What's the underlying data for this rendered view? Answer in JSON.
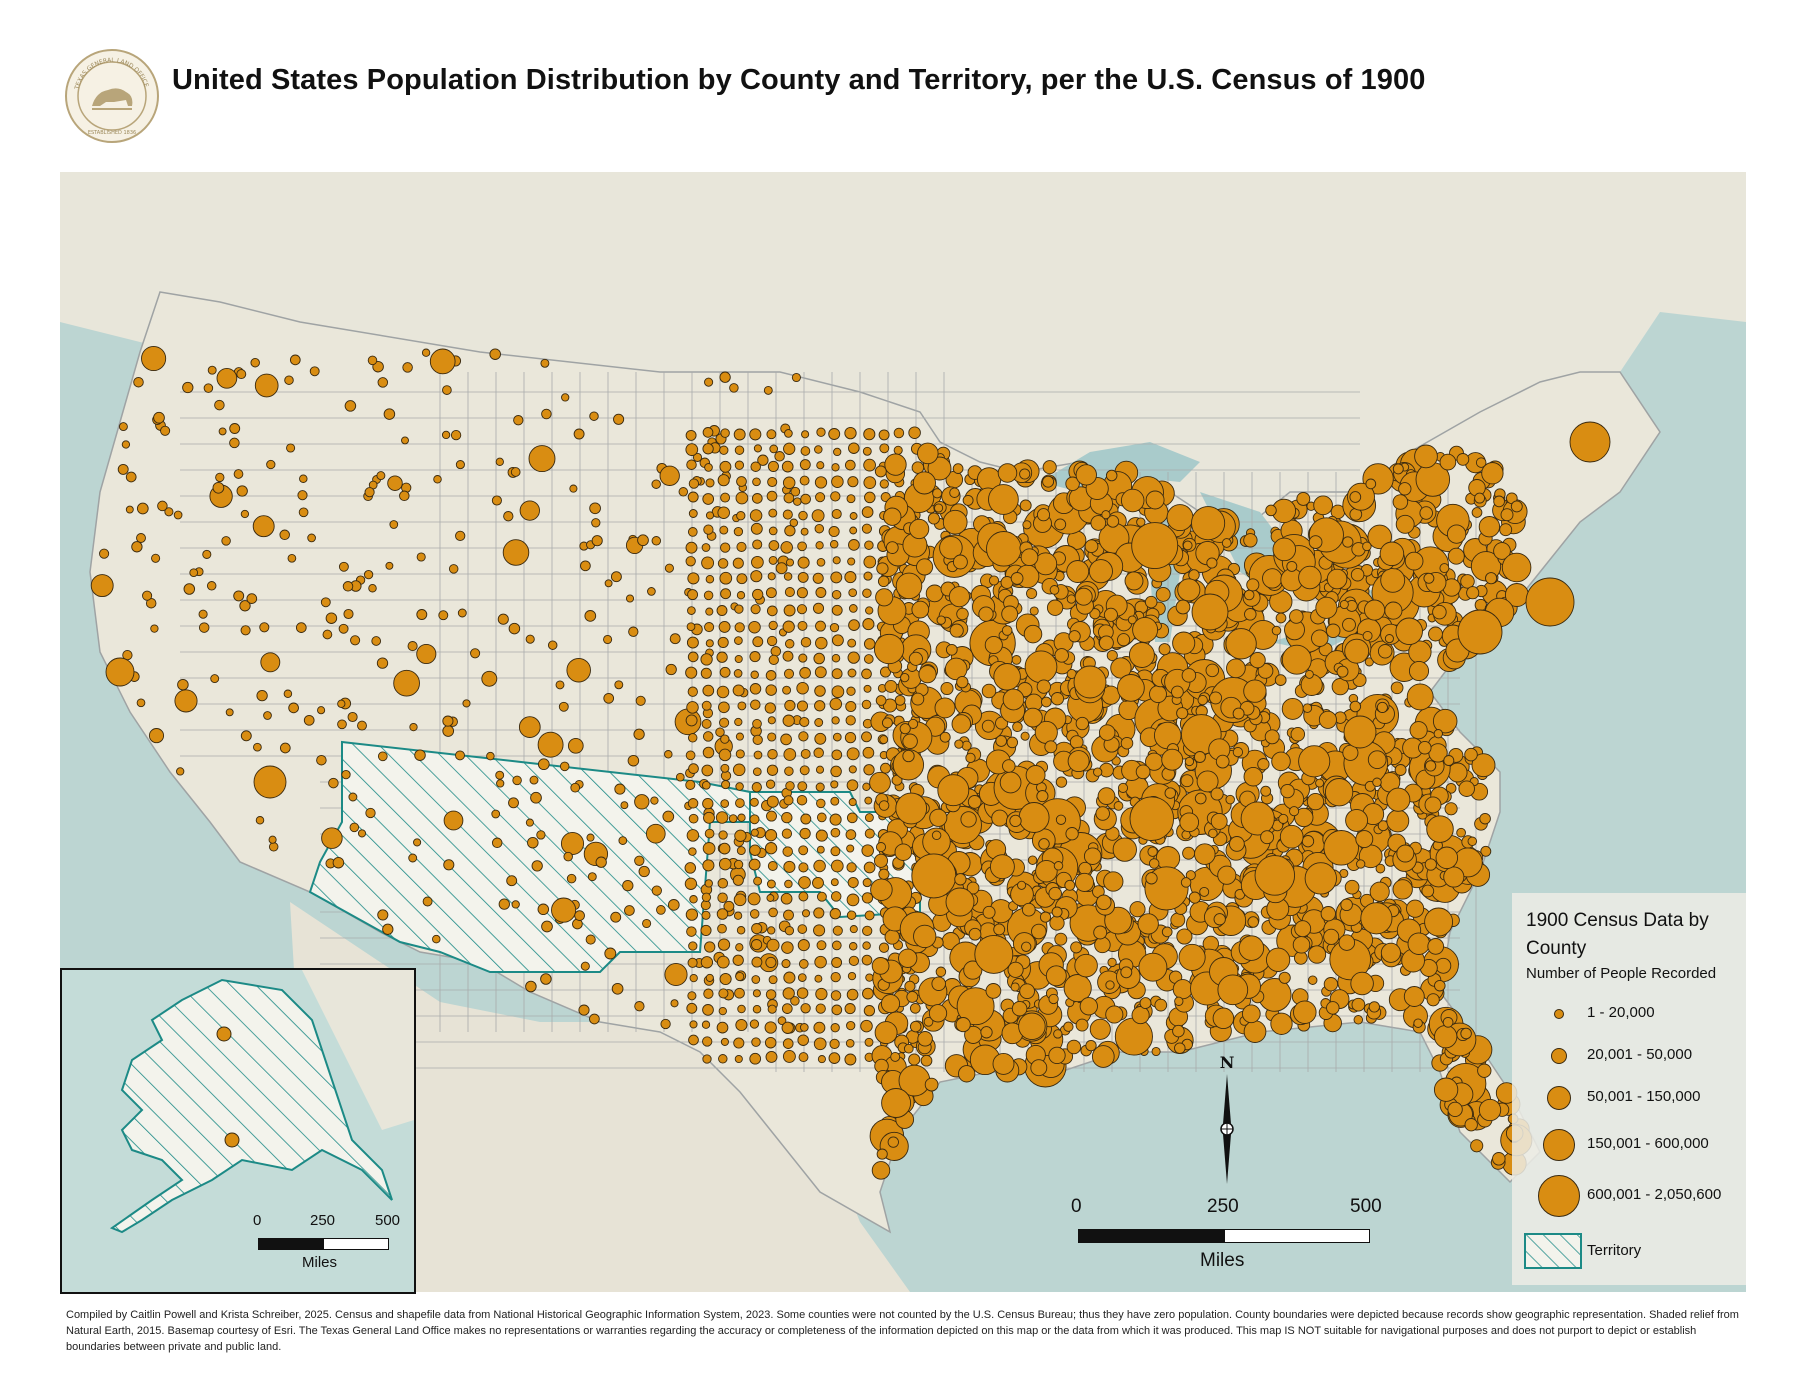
{
  "title": "United States Population Distribution by County and Territory, per the U.S. Census of 1900",
  "seal": {
    "icon": "texas-general-land-office-seal-icon",
    "text_top": "TEXAS GENERAL LAND OFFICE",
    "text_bottom": "ESTABLISHED 1836"
  },
  "legend": {
    "title": "1900 Census Data by County",
    "subtitle": "Number of People Recorded",
    "symbol_color": "#d98d12",
    "territory_color": "#1c8a86",
    "classes": [
      {
        "label": "1 - 20,000"
      },
      {
        "label": "20,001 - 50,000"
      },
      {
        "label": "50,001 - 150,000"
      },
      {
        "label": "150,001 - 600,000"
      },
      {
        "label": "600,001 - 2,050,600"
      }
    ],
    "territory_label": "Territory"
  },
  "scale_bar": {
    "ticks": [
      "0",
      "250",
      "500"
    ],
    "unit": "Miles"
  },
  "inset_scale_bar": {
    "ticks": [
      "0",
      "250",
      "500"
    ],
    "unit": "Miles"
  },
  "north_arrow": {
    "label": "N",
    "icon": "north-arrow-icon"
  },
  "credits": "Compiled by Caitlin Powell and Krista Schreiber, 2025. Census and shapefile data from National Historical Geographic Information System, 2023. Some counties were not counted by the U.S. Census Bureau; thus they have zero population. County boundaries were depicted because records show geographic representation. Shaded relief from Natural Earth, 2015. Basemap courtesy of Esri. The Texas General Land Office makes no representations or warranties regarding the accuracy or completeness of the information depicted on this map or the data from which it was produced. This map IS NOT suitable for navigational purposes and does not purport to depict or establish boundaries between private and public land."
}
